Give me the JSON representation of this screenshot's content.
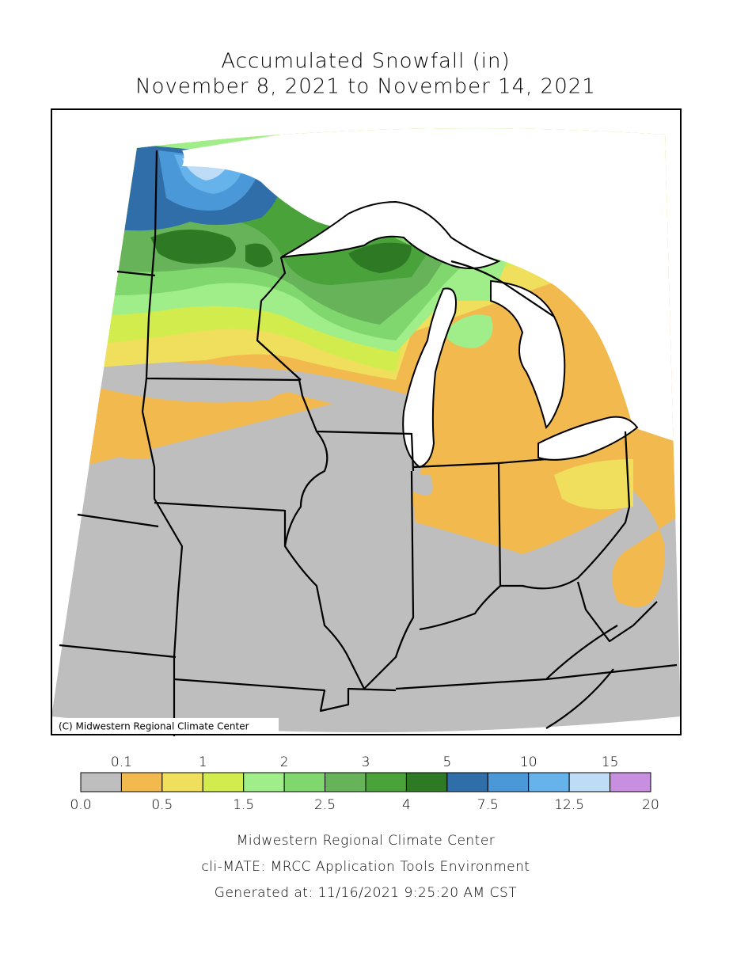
{
  "title": [
    "Accumulated Snowfall (in)",
    "November 8, 2021 to November 14, 2021"
  ],
  "map": {
    "credit": "(C) Midwestern Regional Climate Center"
  },
  "legend": {
    "levels": [
      {
        "value": 0,
        "label": "0.0"
      },
      0.1,
      0.5,
      1,
      1.5,
      2,
      2.5,
      3,
      4,
      5,
      7.5,
      10,
      12.5,
      15,
      20
    ],
    "colors": [
      "#bebebe",
      "#f2b94f",
      "#f0df5c",
      "#d2ec4d",
      "#a0ee8a",
      "#80d76d",
      "#66b35a",
      "#4aa23a",
      "#2e7a24",
      "#2f6ea8",
      "#4a98d8",
      "#66b2ea",
      "#bedcf5",
      "#c88ee0"
    ]
  },
  "footer": [
    "Midwestern Regional Climate Center",
    "cli-MATE: MRCC Application Tools Environment",
    "Generated at: 11/16/2021 9:25:20 AM CST"
  ]
}
